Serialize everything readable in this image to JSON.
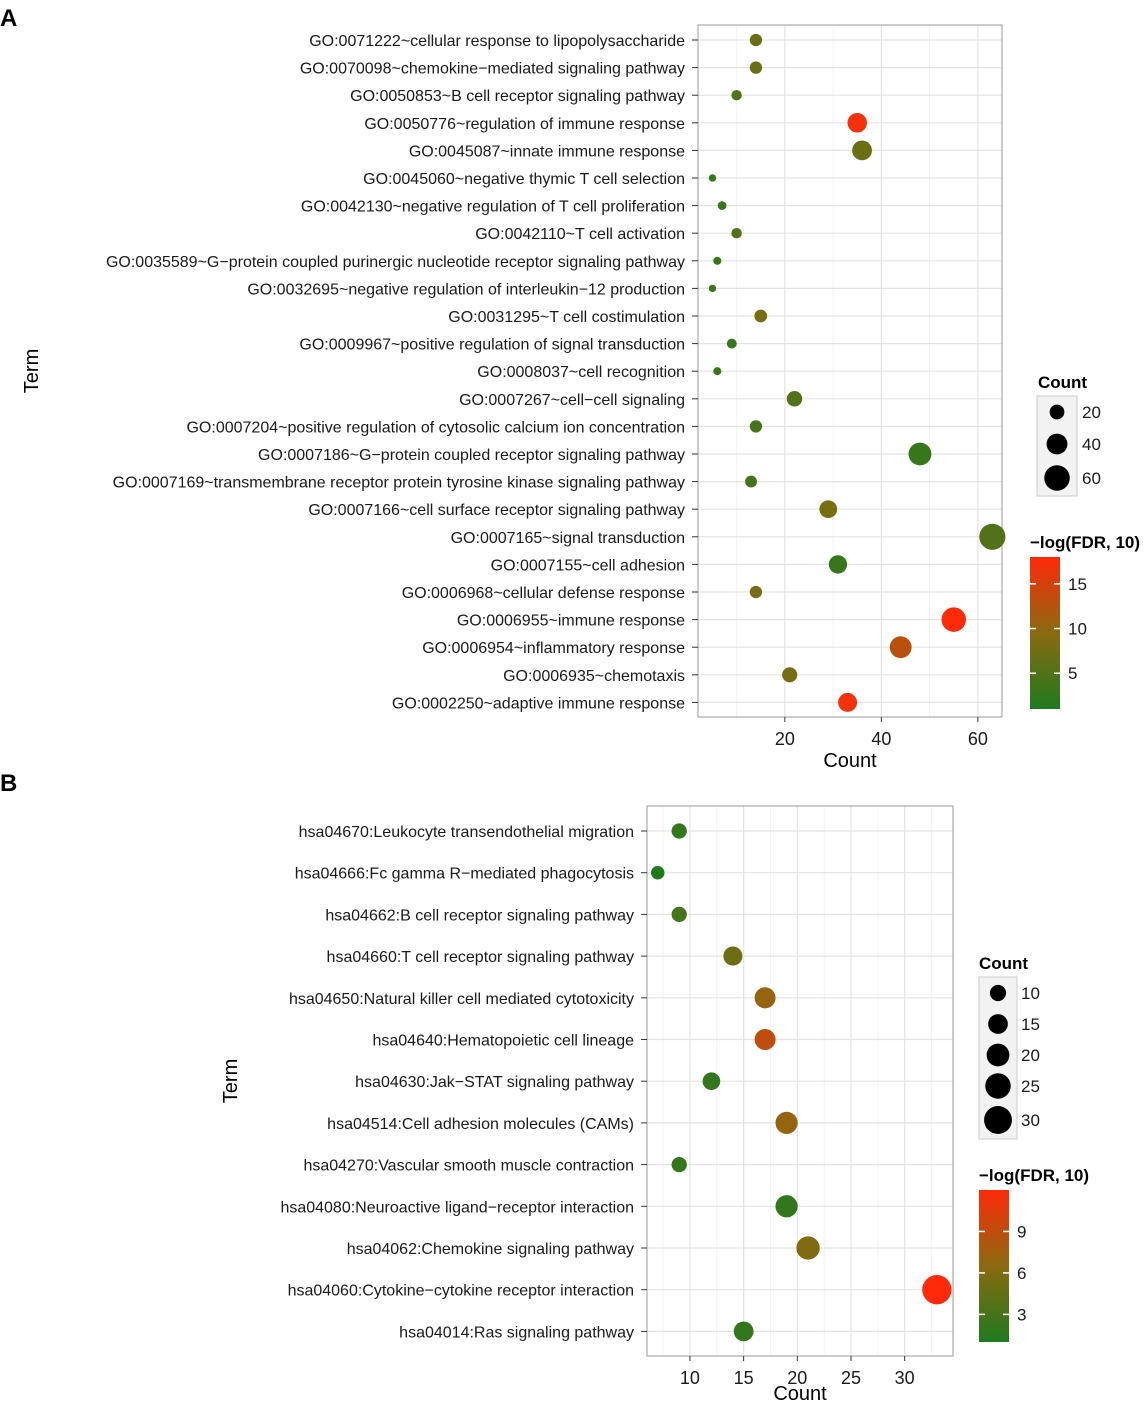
{
  "chart_data": [
    {
      "panel_label": "A",
      "type": "scatter",
      "title": "",
      "xlabel": "Count",
      "ylabel": "Term",
      "xlim": [
        2,
        65
      ],
      "xticks": [
        20,
        40,
        60
      ],
      "grid": true,
      "size_legend": {
        "title": "Count",
        "values": [
          20,
          40,
          60
        ],
        "labels": [
          "20",
          "40",
          "60"
        ]
      },
      "color_legend": {
        "title": "−log(FDR, 10)",
        "range": [
          1,
          18
        ],
        "ticks": [
          5,
          10,
          15
        ],
        "tick_labels": [
          "5",
          "10",
          "15"
        ],
        "low_color": "#1f7a1f",
        "high_color": "#ff2a0a"
      },
      "terms": [
        "GO:0071222~cellular response to lipopolysaccharide",
        "GO:0070098~chemokine−mediated signaling pathway",
        "GO:0050853~B cell receptor signaling pathway",
        "GO:0050776~regulation of immune response",
        "GO:0045087~innate immune response",
        "GO:0045060~negative thymic T cell selection",
        "GO:0042130~negative regulation of T cell proliferation",
        "GO:0042110~T cell activation",
        "GO:0035589~G−protein coupled purinergic nucleotide receptor signaling pathway",
        "GO:0032695~negative regulation of interleukin−12 production",
        "GO:0031295~T cell costimulation",
        "GO:0009967~positive regulation of signal transduction",
        "GO:0008037~cell recognition",
        "GO:0007267~cell−cell signaling",
        "GO:0007204~positive regulation of cytosolic calcium ion concentration",
        "GO:0007186~G−protein coupled receptor signaling pathway",
        "GO:0007169~transmembrane receptor protein tyrosine kinase signaling pathway",
        "GO:0007166~cell surface receptor signaling pathway",
        "GO:0007165~signal transduction",
        "GO:0007155~cell adhesion",
        "GO:0006968~cellular defense response",
        "GO:0006955~immune response",
        "GO:0006954~inflammatory response",
        "GO:0006935~chemotaxis",
        "GO:0002250~adaptive immune response"
      ],
      "counts": [
        14,
        14,
        10,
        35,
        36,
        5,
        7,
        10,
        6,
        5,
        15,
        9,
        6,
        22,
        14,
        48,
        13,
        29,
        63,
        31,
        14,
        55,
        44,
        21,
        33
      ],
      "neg_log_fdr": [
        7,
        7,
        5,
        17,
        7,
        3,
        3,
        5,
        3,
        3,
        8,
        3,
        3,
        5,
        4,
        3,
        4,
        8,
        5,
        3,
        8,
        18,
        13,
        8,
        17
      ],
      "tick_labels": [
        "20",
        "40",
        "60"
      ]
    },
    {
      "panel_label": "B",
      "type": "scatter",
      "title": "",
      "xlabel": "Count",
      "ylabel": "Term",
      "xlim": [
        6,
        34.5
      ],
      "xticks": [
        10,
        15,
        20,
        25,
        30
      ],
      "grid": true,
      "size_legend": {
        "title": "Count",
        "values": [
          10,
          15,
          20,
          25,
          30
        ],
        "labels": [
          "10",
          "15",
          "20",
          "25",
          "30"
        ]
      },
      "color_legend": {
        "title": "−log(FDR, 10)",
        "range": [
          1,
          12
        ],
        "ticks": [
          3,
          6,
          9
        ],
        "tick_labels": [
          "3",
          "6",
          "9"
        ],
        "low_color": "#1f7a1f",
        "high_color": "#ff2a0a"
      },
      "terms": [
        "hsa04670:Leukocyte transendothelial migration",
        "hsa04666:Fc gamma R−mediated phagocytosis",
        "hsa04662:B cell receptor signaling pathway",
        "hsa04660:T cell receptor signaling pathway",
        "hsa04650:Natural killer cell mediated cytotoxicity",
        "hsa04640:Hematopoietic cell lineage",
        "hsa04630:Jak−STAT signaling pathway",
        "hsa04514:Cell adhesion molecules (CAMs)",
        "hsa04270:Vascular smooth muscle contraction",
        "hsa04080:Neuroactive ligand−receptor interaction",
        "hsa04062:Chemokine signaling pathway",
        "hsa04060:Cytokine−cytokine receptor interaction",
        "hsa04014:Ras signaling pathway"
      ],
      "counts": [
        9,
        7,
        9,
        14,
        17,
        17,
        12,
        19,
        9,
        19,
        21,
        33,
        15
      ],
      "neg_log_fdr": [
        2,
        1,
        3,
        5,
        7,
        9,
        2,
        7,
        2,
        2,
        6,
        12,
        2
      ],
      "tick_labels": [
        "10",
        "15",
        "20",
        "25",
        "30"
      ]
    }
  ]
}
